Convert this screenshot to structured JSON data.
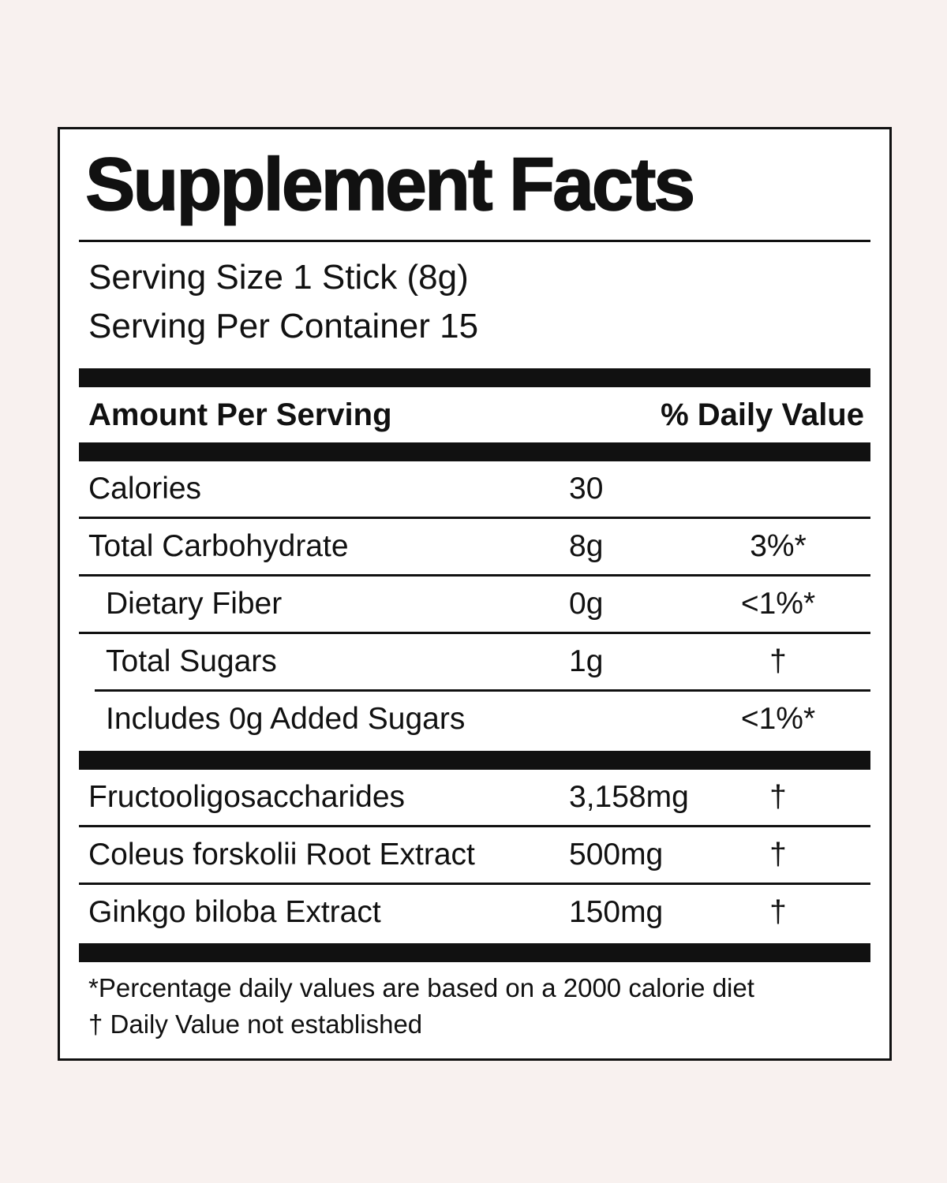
{
  "page": {
    "background_color": "#f8f1ef",
    "panel_background": "#ffffff",
    "ink_color": "#111111"
  },
  "label": {
    "title": "Supplement Facts",
    "serving_size": "Serving Size 1 Stick (8g)",
    "servings_per_container": "Serving Per Container 15",
    "header": {
      "amount": "Amount Per Serving",
      "daily_value": "% Daily Value"
    },
    "nutrients": [
      {
        "name": "Calories",
        "amount": "30",
        "dv": ""
      },
      {
        "name": "Total Carbohydrate",
        "amount": "8g",
        "dv": "3%*"
      },
      {
        "name": "Dietary Fiber",
        "amount": "0g",
        "dv": "<1%*"
      },
      {
        "name": "Total Sugars",
        "amount": "1g",
        "dv": "†"
      },
      {
        "name": "Includes 0g Added Sugars",
        "amount": "",
        "dv": "<1%*"
      }
    ],
    "ingredients": [
      {
        "name": "Fructooligosaccharides",
        "amount": "3,158mg",
        "dv": "†"
      },
      {
        "name": "Coleus forskolii Root Extract",
        "amount": "500mg",
        "dv": "†"
      },
      {
        "name": "Ginkgo biloba Extract",
        "amount": "150mg",
        "dv": "†"
      }
    ],
    "footnotes": [
      "*Percentage daily values are based on a 2000 calorie diet",
      "† Daily Value not established"
    ]
  }
}
